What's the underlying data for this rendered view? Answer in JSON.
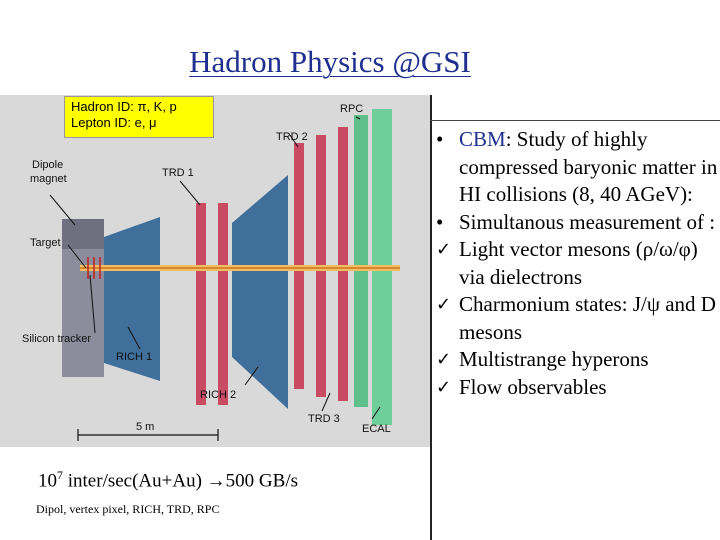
{
  "slide": {
    "title": "Hadron Physics @GSI"
  },
  "figure": {
    "id_box": {
      "hadron_id": "Hadron ID: π, K, p",
      "lepton_id": "Lepton ID:  e, μ"
    },
    "labels": {
      "rpc": "RPC",
      "trd2": "TRD 2",
      "trd1": "TRD 1",
      "dipole": "Dipole",
      "magnet": "magnet",
      "target": "Target",
      "silicon": "Silicon tracker",
      "rich1": "RICH 1",
      "rich2": "RICH 2",
      "trd3": "TRD 3",
      "ecal": "ECAL",
      "scale": "5 m"
    }
  },
  "rate": {
    "base": "10",
    "exp": "7",
    "text": " inter/sec(Au+Au) ",
    "arrow": "→",
    "rate": "500 GB/s"
  },
  "components": "Dipol, vertex pixel, RICH, TRD, RPC",
  "bullets": {
    "b1_prefix": "CBM",
    "b1_text": ": Study of highly compressed  baryonic matter in  HI collisions (8, 40 AGeV):",
    "b2": "Simultanous measurement of :",
    "b3": "Light vector mesons (ρ/ω/φ) via dielectrons",
    "b4": "Charmonium states:  J/ψ and D mesons",
    "b5": "Multistrange hyperons",
    "b6": "Flow observables"
  },
  "icons": {
    "bullet": "•",
    "check": "✓"
  }
}
